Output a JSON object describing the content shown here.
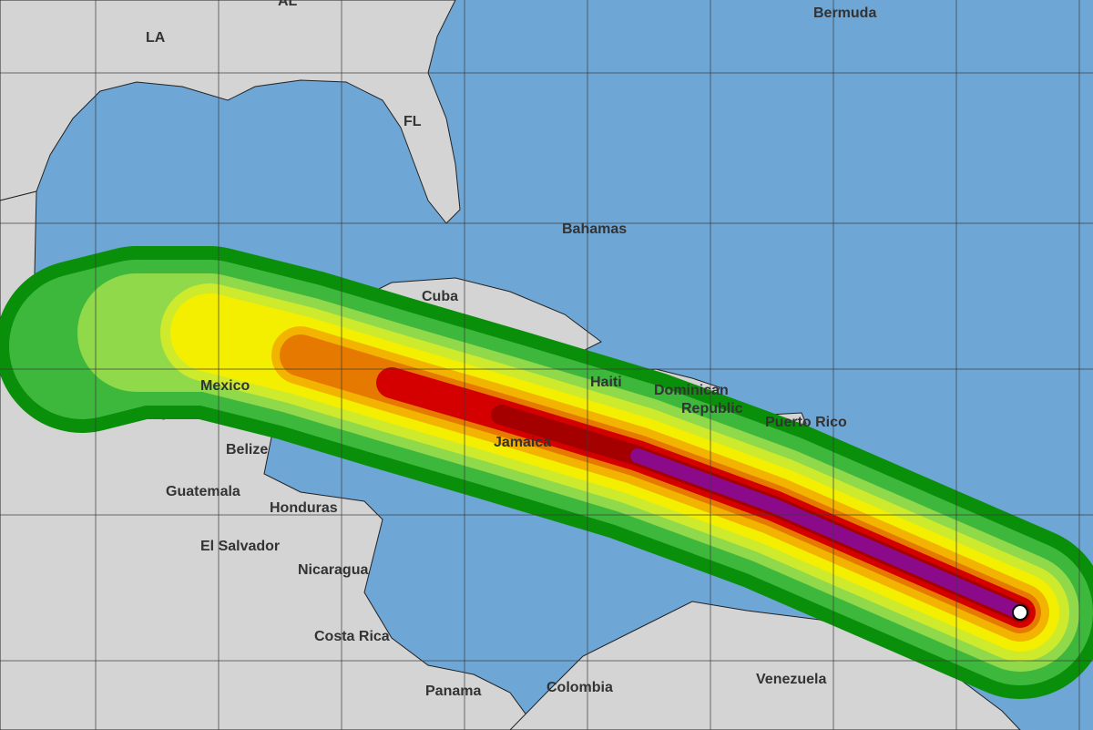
{
  "map": {
    "colors": {
      "ocean": "#6ea6d6",
      "land": "#d4d4d4",
      "forecast_bands": [
        "#0a8f0a",
        "#3db83d",
        "#8fd94a",
        "#cdeb2c",
        "#f4ef00",
        "#f2b400",
        "#e67a00",
        "#d40000",
        "#a40000",
        "#8a0a8a"
      ],
      "storm_center": "#ffffff"
    },
    "labels": {
      "la": "LA",
      "al": "AL",
      "fl": "FL",
      "bermuda": "Bermuda",
      "bahamas": "Bahamas",
      "cuba": "Cuba",
      "mexico": "Mexico",
      "belize": "Belize",
      "guatemala": "Guatemala",
      "honduras": "Honduras",
      "el_salvador": "El Salvador",
      "nicaragua": "Nicaragua",
      "costa_rica": "Costa Rica",
      "panama": "Panama",
      "colombia": "Colombia",
      "venezuela": "Venezuela",
      "jamaica": "Jamaica",
      "haiti": "Haiti",
      "dominican_republic_1": "Dominican",
      "dominican_republic_2": "Republic",
      "puerto_rico": "Puerto Rico"
    },
    "storm_marker": "storm-center-icon"
  }
}
